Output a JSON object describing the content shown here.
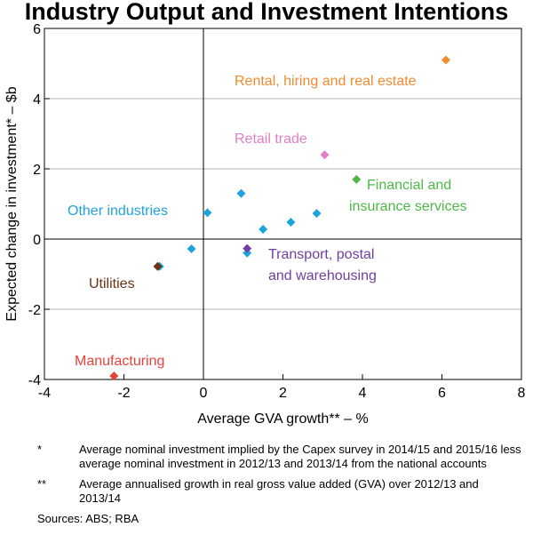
{
  "chart_data": {
    "type": "scatter",
    "title": "Industry Output and Investment Intentions",
    "xlabel": "Average GVA growth** – %",
    "ylabel": "Expected change in investment* – $b",
    "xlim": [
      -4,
      8
    ],
    "ylim": [
      -4,
      6
    ],
    "xticks": [
      "-4",
      "-2",
      "0",
      "2",
      "4",
      "6",
      "8"
    ],
    "yticks": [
      "-4",
      "-2",
      "0",
      "2",
      "4",
      "6"
    ],
    "grid": "horizontal",
    "series": [
      {
        "name": "Rental, hiring and real estate",
        "color": "#f28b30",
        "points": [
          [
            6.1,
            5.1
          ]
        ]
      },
      {
        "name": "Retail trade",
        "color": "#e07fc8",
        "points": [
          [
            3.05,
            2.4
          ]
        ]
      },
      {
        "name": "Financial and insurance services",
        "color": "#4db848",
        "points": [
          [
            3.85,
            1.7
          ]
        ]
      },
      {
        "name": "Other industries",
        "color": "#1fa3dc",
        "points": [
          [
            0.1,
            0.75
          ],
          [
            0.95,
            1.3
          ],
          [
            1.5,
            0.28
          ],
          [
            2.2,
            0.48
          ],
          [
            2.85,
            0.73
          ],
          [
            -0.3,
            -0.28
          ],
          [
            -1.1,
            -0.78
          ],
          [
            1.1,
            -0.4
          ]
        ]
      },
      {
        "name": "Transport, postal and warehousing",
        "color": "#6e3fa0",
        "points": [
          [
            1.1,
            -0.27
          ]
        ]
      },
      {
        "name": "Utilities",
        "color": "#6b3314",
        "points": [
          [
            -1.15,
            -0.78
          ]
        ]
      },
      {
        "name": "Manufacturing",
        "color": "#e8423c",
        "points": [
          [
            -2.25,
            -3.9
          ]
        ]
      }
    ],
    "annotations": [
      {
        "series": "Rental, hiring and real estate",
        "lines": [
          "Rental, hiring and real estate"
        ]
      },
      {
        "series": "Retail trade",
        "lines": [
          "Retail trade"
        ]
      },
      {
        "series": "Financial and insurance services",
        "lines": [
          "Financial and",
          "insurance services"
        ]
      },
      {
        "series": "Other industries",
        "lines": [
          "Other industries"
        ]
      },
      {
        "series": "Transport, postal and warehousing",
        "lines": [
          "Transport, postal",
          "and warehousing"
        ]
      },
      {
        "series": "Utilities",
        "lines": [
          "Utilities"
        ]
      },
      {
        "series": "Manufacturing",
        "lines": [
          "Manufacturing"
        ]
      }
    ]
  },
  "notes": [
    {
      "mark": "*",
      "text": "Average nominal investment implied by the Capex survey in 2014/15 and 2015/16 less average nominal investment in 2012/13 and 2013/14 from the national accounts"
    },
    {
      "mark": "**",
      "text": "Average annualised growth in real gross value added (GVA) over 2012/13 and 2013/14"
    }
  ],
  "sources": "Sources:  ABS; RBA"
}
